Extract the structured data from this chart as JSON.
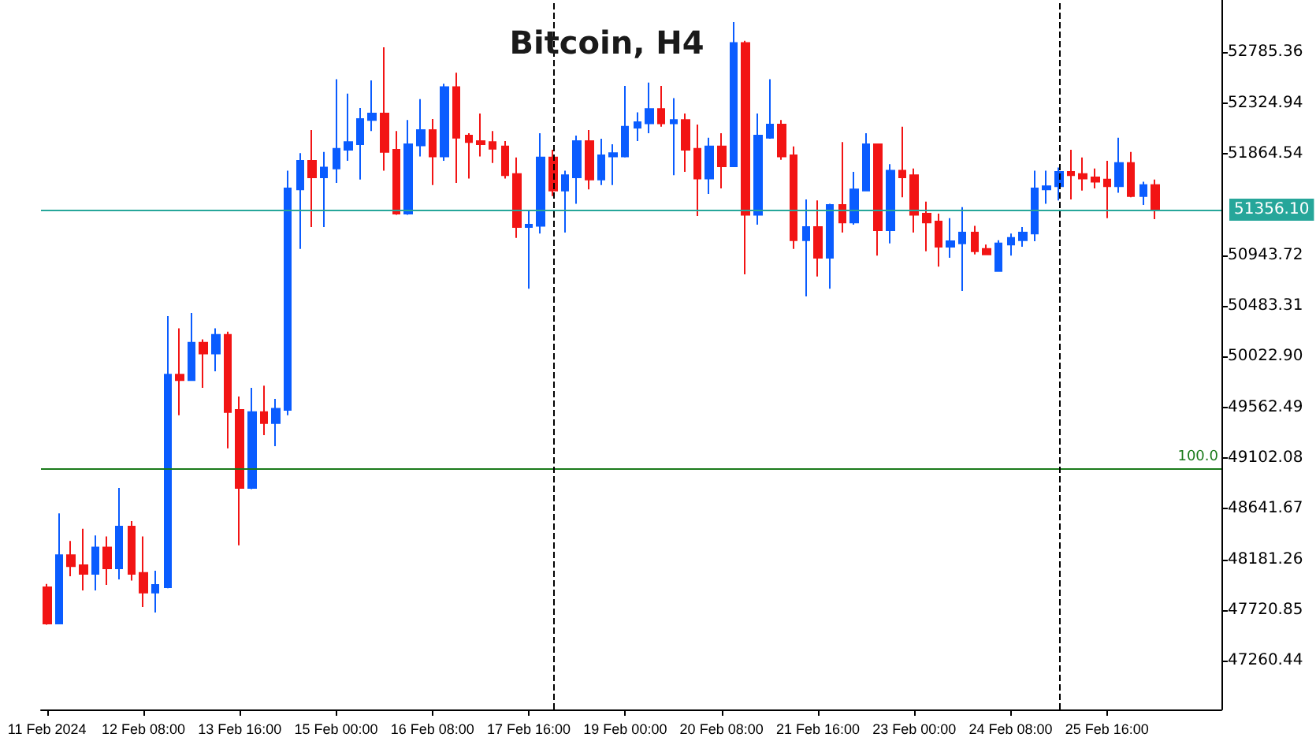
{
  "chart_data": {
    "type": "candlestick",
    "title": "Bitcoin, H4",
    "colors": [
      "#f21414",
      "#0a5cff",
      "#f21414",
      "#f21414",
      "#0a5cff",
      "#f21414",
      "#0a5cff",
      "#f21414",
      "#f21414",
      "#0a5cff",
      "#0a5cff",
      "#f21414",
      "#0a5cff",
      "#f21414",
      "#0a5cff",
      "#f21414",
      "#f21414",
      "#0a5cff",
      "#f21414",
      "#0a5cff",
      "#0a5cff",
      "#0a5cff",
      "#f21414",
      "#0a5cff",
      "#0a5cff",
      "#0a5cff",
      "#0a5cff",
      "#0a5cff",
      "#f21414",
      "#f21414",
      "#0a5cff",
      "#0a5cff",
      "#f21414",
      "#0a5cff",
      "#f21414",
      "#f21414",
      "#f21414",
      "#f21414",
      "#f21414",
      "#f21414",
      "#0a5cff",
      "#0a5cff",
      "#f21414",
      "#0a5cff",
      "#0a5cff",
      "#f21414",
      "#0a5cff",
      "#0a5cff",
      "#0a5cff",
      "#0a5cff",
      "#0a5cff",
      "#f21414",
      "#0a5cff",
      "#f21414",
      "#f21414",
      "#0a5cff",
      "#f21414",
      "#0a5cff",
      "#f21414",
      "#0a5cff",
      "#0a5cff",
      "#f21414",
      "#f21414",
      "#0a5cff",
      "#f21414",
      "#0a5cff",
      "#f21414",
      "#0a5cff",
      "#0a5cff",
      "#f21414",
      "#0a5cff",
      "#f21414",
      "#f21414",
      "#f21414",
      "#f21414",
      "#0a5cff",
      "#0a5cff",
      "#f21414",
      "#f21414",
      "#0a5cff",
      "#0a5cff",
      "#0a5cff",
      "#0a5cff",
      "#0a5cff",
      "#0a5cff",
      "#f21414",
      "#f21414",
      "#f21414",
      "#f21414",
      "#0a5cff",
      "#f21414",
      "#0a5cff",
      "#f21414"
    ],
    "annotations": [
      "100.0"
    ],
    "x": [
      "2024-02-11T00:00",
      "2024-02-11T04:00",
      "2024-02-11T08:00",
      "2024-02-11T12:00",
      "2024-02-11T16:00",
      "2024-02-11T20:00",
      "2024-02-12T00:00",
      "2024-02-12T04:00",
      "2024-02-12T08:00",
      "2024-02-12T12:00",
      "2024-02-12T16:00",
      "2024-02-12T20:00",
      "2024-02-13T00:00",
      "2024-02-13T04:00",
      "2024-02-13T08:00",
      "2024-02-13T12:00",
      "2024-02-13T16:00",
      "2024-02-13T20:00",
      "2024-02-14T00:00",
      "2024-02-14T04:00",
      "2024-02-14T08:00",
      "2024-02-14T12:00",
      "2024-02-14T16:00",
      "2024-02-14T20:00",
      "2024-02-15T00:00",
      "2024-02-15T04:00",
      "2024-02-15T08:00",
      "2024-02-15T12:00",
      "2024-02-15T16:00",
      "2024-02-15T20:00",
      "2024-02-16T00:00",
      "2024-02-16T04:00",
      "2024-02-16T08:00",
      "2024-02-16T12:00",
      "2024-02-16T16:00",
      "2024-02-16T20:00",
      "2024-02-17T00:00",
      "2024-02-17T04:00",
      "2024-02-17T08:00",
      "2024-02-17T12:00",
      "2024-02-17T16:00",
      "2024-02-17T20:00",
      "2024-02-18T00:00",
      "2024-02-18T04:00",
      "2024-02-18T08:00",
      "2024-02-18T12:00",
      "2024-02-18T16:00",
      "2024-02-18T20:00",
      "2024-02-19T00:00",
      "2024-02-19T04:00",
      "2024-02-19T08:00",
      "2024-02-19T12:00",
      "2024-02-19T16:00",
      "2024-02-19T20:00",
      "2024-02-20T00:00",
      "2024-02-20T04:00",
      "2024-02-20T08:00",
      "2024-02-20T12:00",
      "2024-02-20T16:00",
      "2024-02-20T20:00",
      "2024-02-21T00:00",
      "2024-02-21T04:00",
      "2024-02-21T08:00",
      "2024-02-21T12:00",
      "2024-02-21T16:00",
      "2024-02-21T20:00",
      "2024-02-22T00:00",
      "2024-02-22T04:00",
      "2024-02-22T08:00",
      "2024-02-22T12:00",
      "2024-02-22T16:00",
      "2024-02-22T20:00",
      "2024-02-23T00:00",
      "2024-02-23T04:00",
      "2024-02-23T08:00",
      "2024-02-23T12:00",
      "2024-02-23T16:00",
      "2024-02-23T20:00",
      "2024-02-24T00:00",
      "2024-02-24T04:00",
      "2024-02-24T08:00",
      "2024-02-24T12:00",
      "2024-02-24T16:00",
      "2024-02-24T20:00",
      "2024-02-25T00:00",
      "2024-02-25T04:00",
      "2024-02-25T08:00",
      "2024-02-25T12:00",
      "2024-02-25T16:00",
      "2024-02-25T20:00",
      "2024-02-26T00:00",
      "2024-02-26T04:00",
      "2024-02-26T08:00"
    ],
    "ohlc": [
      [
        47930,
        47960,
        47590,
        47600
      ],
      [
        47600,
        48600,
        47600,
        48220
      ],
      [
        48220,
        48350,
        48030,
        48120
      ],
      [
        48130,
        48460,
        47900,
        48050
      ],
      [
        48050,
        48400,
        47900,
        48290
      ],
      [
        48290,
        48390,
        47950,
        48100
      ],
      [
        48100,
        48830,
        48000,
        48480
      ],
      [
        48480,
        48530,
        47990,
        48050
      ],
      [
        48060,
        48390,
        47750,
        47880
      ],
      [
        47880,
        48080,
        47700,
        47950
      ],
      [
        47930,
        50390,
        47920,
        49860
      ],
      [
        49860,
        50280,
        49490,
        49810
      ],
      [
        49810,
        50420,
        49810,
        50150
      ],
      [
        50150,
        50180,
        49740,
        50050
      ],
      [
        50050,
        50280,
        49890,
        50220
      ],
      [
        50220,
        50250,
        49190,
        49520
      ],
      [
        49540,
        49660,
        48310,
        48830
      ],
      [
        48830,
        49740,
        48820,
        49520
      ],
      [
        49520,
        49760,
        49310,
        49420
      ],
      [
        49420,
        49640,
        49210,
        49550
      ],
      [
        49540,
        51710,
        49490,
        51550
      ],
      [
        51540,
        51870,
        51000,
        51800
      ],
      [
        51800,
        52080,
        51200,
        51650
      ],
      [
        51650,
        51880,
        51200,
        51740
      ],
      [
        51730,
        52540,
        51600,
        51910
      ],
      [
        51900,
        52410,
        51800,
        51970
      ],
      [
        51950,
        52280,
        51630,
        52180
      ],
      [
        52170,
        52530,
        52070,
        52230
      ],
      [
        52230,
        52830,
        51710,
        51880
      ],
      [
        51900,
        52070,
        51310,
        51320
      ],
      [
        51320,
        52170,
        51310,
        51950
      ],
      [
        51940,
        52360,
        51840,
        52080
      ],
      [
        52080,
        52180,
        51580,
        51840
      ],
      [
        51840,
        52500,
        51800,
        52470
      ],
      [
        52470,
        52600,
        51600,
        52010
      ],
      [
        52030,
        52050,
        51640,
        51970
      ],
      [
        51980,
        52230,
        51840,
        51950
      ],
      [
        51970,
        52070,
        51780,
        51910
      ],
      [
        51930,
        51980,
        51640,
        51670
      ],
      [
        51680,
        51830,
        51100,
        51200
      ],
      [
        51200,
        51350,
        50640,
        51220
      ],
      [
        51210,
        52050,
        51140,
        51830
      ],
      [
        51830,
        51900,
        51480,
        51530
      ],
      [
        51530,
        51710,
        51150,
        51670
      ],
      [
        51650,
        52030,
        51410,
        51980
      ],
      [
        51980,
        52080,
        51540,
        51630
      ],
      [
        51630,
        52000,
        51580,
        51850
      ],
      [
        51840,
        51950,
        51580,
        51870
      ],
      [
        51840,
        52480,
        51830,
        52110
      ],
      [
        52100,
        52240,
        51980,
        52150
      ],
      [
        52140,
        52510,
        52050,
        52270
      ],
      [
        52270,
        52480,
        52110,
        52140
      ],
      [
        52140,
        52370,
        51670,
        52170
      ],
      [
        52170,
        52230,
        51700,
        51900
      ],
      [
        51910,
        52130,
        51300,
        51640
      ],
      [
        51640,
        52010,
        51500,
        51930
      ],
      [
        51930,
        52050,
        51550,
        51750
      ],
      [
        51750,
        53060,
        51750,
        52870
      ],
      [
        52870,
        52890,
        50770,
        51310
      ],
      [
        51310,
        52230,
        51220,
        52030
      ],
      [
        52010,
        52540,
        52000,
        52130
      ],
      [
        52130,
        52170,
        51810,
        51840
      ],
      [
        51850,
        51930,
        51000,
        51080
      ],
      [
        51080,
        51450,
        50570,
        51200
      ],
      [
        51200,
        51440,
        50750,
        50920
      ],
      [
        50920,
        51410,
        50640,
        51400
      ],
      [
        51400,
        51970,
        51150,
        51240
      ],
      [
        51240,
        51700,
        51220,
        51540
      ],
      [
        51530,
        52050,
        51530,
        51950
      ],
      [
        51950,
        51950,
        50940,
        51170
      ],
      [
        51170,
        51770,
        51050,
        51710
      ],
      [
        51710,
        52110,
        51470,
        51650
      ],
      [
        51670,
        51730,
        51150,
        51310
      ],
      [
        51320,
        51430,
        50980,
        51240
      ],
      [
        51250,
        51320,
        50840,
        51020
      ],
      [
        51020,
        51280,
        50920,
        51070
      ],
      [
        51050,
        51380,
        50620,
        51150
      ],
      [
        51150,
        51210,
        50950,
        50980
      ],
      [
        51000,
        51040,
        50950,
        50950
      ],
      [
        50800,
        51080,
        50800,
        51050
      ],
      [
        51040,
        51140,
        50940,
        51100
      ],
      [
        51080,
        51200,
        51020,
        51150
      ],
      [
        51140,
        51710,
        51070,
        51550
      ],
      [
        51540,
        51710,
        51410,
        51570
      ],
      [
        51570,
        51740,
        51440,
        51700
      ],
      [
        51700,
        51900,
        51450,
        51670
      ],
      [
        51680,
        51830,
        51530,
        51640
      ],
      [
        51650,
        51730,
        51550,
        51610
      ],
      [
        51630,
        51800,
        51280,
        51570
      ],
      [
        51570,
        52010,
        51510,
        51780
      ],
      [
        51780,
        51880,
        51470,
        51480
      ],
      [
        51480,
        51610,
        51400,
        51580
      ],
      [
        51580,
        51630,
        51270,
        51350
      ]
    ],
    "xlim": [
      "2024-02-10T22:00",
      "2024-02-27T06:00"
    ],
    "xticks": [
      {
        "value": "2024-02-11T00:00",
        "label": "11 Feb 2024"
      },
      {
        "value": "2024-02-12T08:00",
        "label": "12 Feb 08:00"
      },
      {
        "value": "2024-02-13T16:00",
        "label": "13 Feb 16:00"
      },
      {
        "value": "2024-02-15T00:00",
        "label": "15 Feb 00:00"
      },
      {
        "value": "2024-02-16T08:00",
        "label": "16 Feb 08:00"
      },
      {
        "value": "2024-02-17T16:00",
        "label": "17 Feb 16:00"
      },
      {
        "value": "2024-02-19T00:00",
        "label": "19 Feb 00:00"
      },
      {
        "value": "2024-02-20T08:00",
        "label": "20 Feb 08:00"
      },
      {
        "value": "2024-02-21T16:00",
        "label": "21 Feb 16:00"
      },
      {
        "value": "2024-02-23T00:00",
        "label": "23 Feb 00:00"
      },
      {
        "value": "2024-02-24T08:00",
        "label": "24 Feb 08:00"
      },
      {
        "value": "2024-02-25T16:00",
        "label": "25 Feb 16:00"
      }
    ],
    "ylim": [
      46820,
      53260
    ],
    "yticks": [
      {
        "value": 47260.44,
        "label": "47260.44"
      },
      {
        "value": 47720.85,
        "label": "47720.85"
      },
      {
        "value": 48181.26,
        "label": "48181.26"
      },
      {
        "value": 48641.67,
        "label": "48641.67"
      },
      {
        "value": 49102.08,
        "label": "49102.08"
      },
      {
        "value": 49562.49,
        "label": "49562.49"
      },
      {
        "value": 50022.9,
        "label": "50022.90"
      },
      {
        "value": 50483.31,
        "label": "50483.31"
      },
      {
        "value": 50943.72,
        "label": "50943.72"
      },
      {
        "value": 51864.54,
        "label": "51864.54"
      },
      {
        "value": 52324.94,
        "label": "52324.94"
      },
      {
        "value": 52785.36,
        "label": "52785.36"
      }
    ],
    "ref_lines": [
      {
        "axis": "y",
        "value": 51356.1,
        "label": "51356.10",
        "color": "#26a69a"
      },
      {
        "axis": "y",
        "value": 49000,
        "color": "#1a7a1a"
      },
      {
        "axis": "x",
        "value": "2024-02-18T00:00",
        "color": "#000000",
        "line_style": "dashed"
      },
      {
        "axis": "x",
        "value": "2024-02-25T00:00",
        "color": "#000000",
        "line_style": "dashed"
      }
    ],
    "grid": false
  }
}
